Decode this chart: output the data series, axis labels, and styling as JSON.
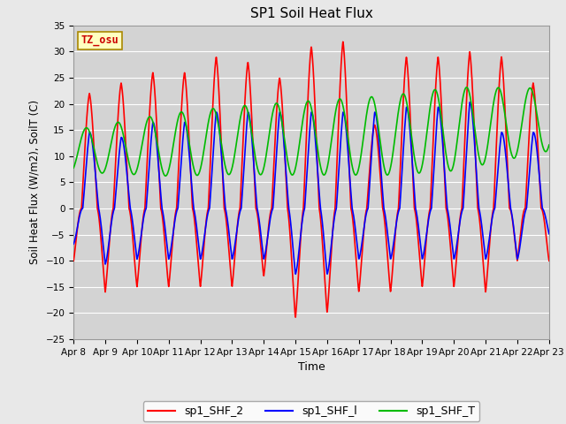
{
  "title": "SP1 Soil Heat Flux",
  "xlabel": "Time",
  "ylabel": "Soil Heat Flux (W/m2), SoilT (C)",
  "ylim": [
    -25,
    35
  ],
  "fig_facecolor": "#e8e8e8",
  "plot_bg_color": "#d3d3d3",
  "grid_color": "#ffffff",
  "tz_label": "TZ_osu",
  "x_tick_labels": [
    "Apr 8",
    "Apr 9",
    "Apr 10",
    "Apr 11",
    "Apr 12",
    "Apr 13",
    "Apr 14",
    "Apr 15",
    "Apr 16",
    "Apr 17",
    "Apr 18",
    "Apr 19",
    "Apr 20",
    "Apr 21",
    "Apr 22",
    "Apr 23"
  ],
  "legend_labels": [
    "sp1_SHF_2",
    "sp1_SHF_l",
    "sp1_SHF_T"
  ],
  "legend_colors": [
    "#ff0000",
    "#0000ff",
    "#00bb00"
  ],
  "line_width": 1.2,
  "num_days": 15,
  "points_per_day": 144
}
